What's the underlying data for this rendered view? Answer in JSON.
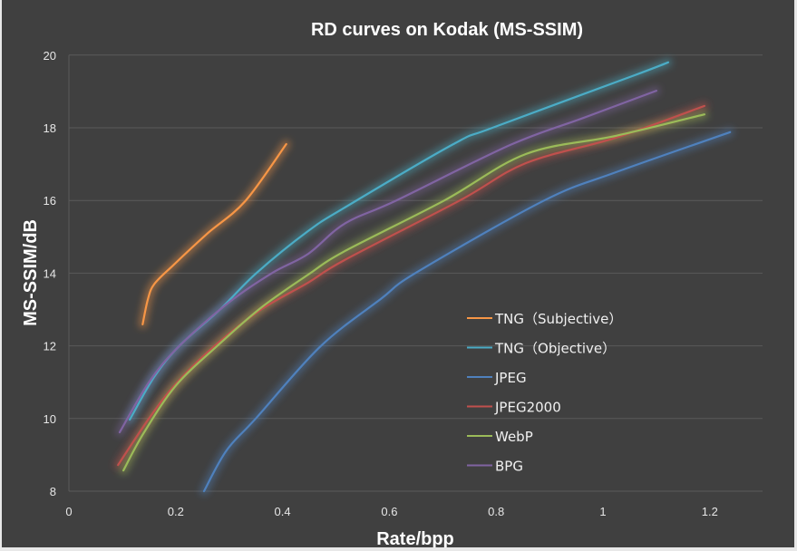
{
  "chart_data": {
    "type": "line",
    "title": "RD curves on Kodak (MS-SSIM)",
    "xlabel": "Rate/bpp",
    "ylabel": "MS-SSIM/dB",
    "xlim": [
      0,
      1.3
    ],
    "ylim": [
      8,
      20
    ],
    "x_ticks": [
      "0",
      "0.2",
      "0.4",
      "0.6",
      "0.8",
      "1",
      "1.2"
    ],
    "x_tick_values": [
      0,
      0.2,
      0.4,
      0.6,
      0.8,
      1,
      1.2
    ],
    "y_ticks": [
      "8",
      "10",
      "12",
      "14",
      "16",
      "18",
      "20"
    ],
    "y_tick_values": [
      8,
      10,
      12,
      14,
      16,
      18,
      20
    ],
    "grid": "horizontal",
    "legend_position": "right-center",
    "background_color": "#404040",
    "series": [
      {
        "name": "TNG（Subjective）",
        "color": "#f79646",
        "x": [
          0.138,
          0.148,
          0.16,
          0.194,
          0.26,
          0.33,
          0.407
        ],
        "y": [
          12.59,
          13.29,
          13.7,
          14.2,
          15.1,
          15.98,
          17.55
        ]
      },
      {
        "name": "TNG（Objective）",
        "color": "#4bacc6",
        "x": [
          0.114,
          0.16,
          0.207,
          0.283,
          0.351,
          0.448,
          0.516,
          0.72,
          0.793,
          1.06,
          1.122
        ],
        "y": [
          9.97,
          11.15,
          12.0,
          13.0,
          14.0,
          15.16,
          15.8,
          17.55,
          18.0,
          19.45,
          19.8
        ]
      },
      {
        "name": "JPEG",
        "color": "#4f81bd",
        "x": [
          0.253,
          0.295,
          0.35,
          0.47,
          0.584,
          0.652,
          0.89,
          1.025,
          1.238
        ],
        "y": [
          8.0,
          9.12,
          10.0,
          11.97,
          13.29,
          14.03,
          16.0,
          16.78,
          17.88
        ]
      },
      {
        "name": "JPEG2000",
        "color": "#c0504d",
        "x": [
          0.092,
          0.15,
          0.2,
          0.273,
          0.36,
          0.448,
          0.516,
          0.732,
          0.856,
          1.025,
          1.19
        ],
        "y": [
          8.72,
          10.0,
          10.95,
          12.0,
          13.0,
          13.74,
          14.36,
          16.0,
          17.03,
          17.73,
          18.6
        ]
      },
      {
        "name": "WebP",
        "color": "#9bbb59",
        "x": [
          0.102,
          0.14,
          0.2,
          0.278,
          0.36,
          0.448,
          0.516,
          0.703,
          0.856,
          1.025,
          1.19
        ],
        "y": [
          8.57,
          9.6,
          10.9,
          12.0,
          13.05,
          13.96,
          14.6,
          16.0,
          17.28,
          17.78,
          18.37
        ]
      },
      {
        "name": "BPG",
        "color": "#8064a2",
        "x": [
          0.095,
          0.15,
          0.207,
          0.3,
          0.38,
          0.448,
          0.516,
          0.613,
          0.827,
          0.963,
          1.1
        ],
        "y": [
          9.62,
          11.0,
          12.0,
          13.2,
          14.0,
          14.53,
          15.36,
          16.0,
          17.53,
          18.27,
          19.02
        ]
      }
    ]
  }
}
